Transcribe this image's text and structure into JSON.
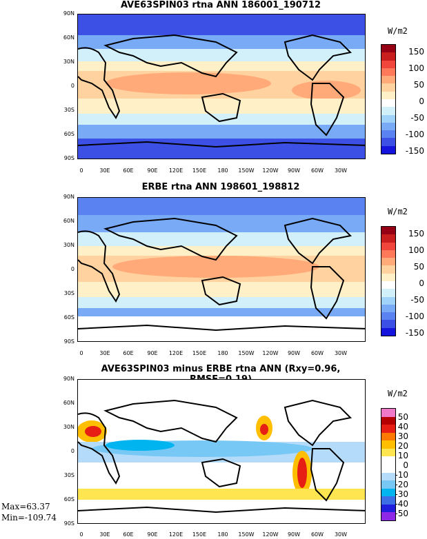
{
  "panels": [
    {
      "id": "p1",
      "title": "AVE63SPIN03 rtna ANN 186001_190712",
      "units": "W/m2",
      "colorbar": {
        "colors": [
          "#1414dc",
          "#3c50e6",
          "#5a82f0",
          "#78aaf5",
          "#a0d2fa",
          "#d2f0fa",
          "#ffffff",
          "#fff0c8",
          "#ffd2a0",
          "#ffaa78",
          "#ff785a",
          "#f0463c",
          "#c81e1e",
          "#960014"
        ],
        "labels": [
          "150",
          "100",
          "50",
          "0",
          "-50",
          "-100",
          "-150"
        ]
      }
    },
    {
      "id": "p2",
      "title": "ERBE rtna ANN 198601_198812",
      "units": "W/m2",
      "colorbar": {
        "colors": [
          "#1414dc",
          "#3c50e6",
          "#5a82f0",
          "#78aaf5",
          "#a0d2fa",
          "#d2f0fa",
          "#ffffff",
          "#fff0c8",
          "#ffd2a0",
          "#ffaa78",
          "#ff785a",
          "#f0463c",
          "#c81e1e",
          "#960014"
        ],
        "labels": [
          "150",
          "100",
          "50",
          "0",
          "-50",
          "-100",
          "-150"
        ]
      }
    },
    {
      "id": "p3",
      "title": "AVE63SPIN03 minus ERBE rtna ANN (Rxy=0.96, RMSE=0.19)",
      "units": "W/m2",
      "colorbar": {
        "colors": [
          "#8c28e6",
          "#1e1edc",
          "#3c6ee6",
          "#00b4f0",
          "#78c8f5",
          "#b4dcfa",
          "#ffffff",
          "#ffffff",
          "#ffe650",
          "#ffbe00",
          "#ff7800",
          "#e61e14",
          "#b40000",
          "#f078c8"
        ],
        "labels": [
          "50",
          "40",
          "30",
          "20",
          "10",
          "0",
          "-10",
          "-20",
          "-30",
          "-40",
          "-50"
        ]
      }
    }
  ],
  "lat_ticks": [
    "90N",
    "60N",
    "30N",
    "0",
    "30S",
    "60S",
    "90S"
  ],
  "lon_ticks": [
    "0",
    "30E",
    "60E",
    "90E",
    "120E",
    "150E",
    "180",
    "150W",
    "120W",
    "90W",
    "60W",
    "30W"
  ],
  "stats": {
    "max": "Max=63.37",
    "min": "Min=-109.74"
  }
}
